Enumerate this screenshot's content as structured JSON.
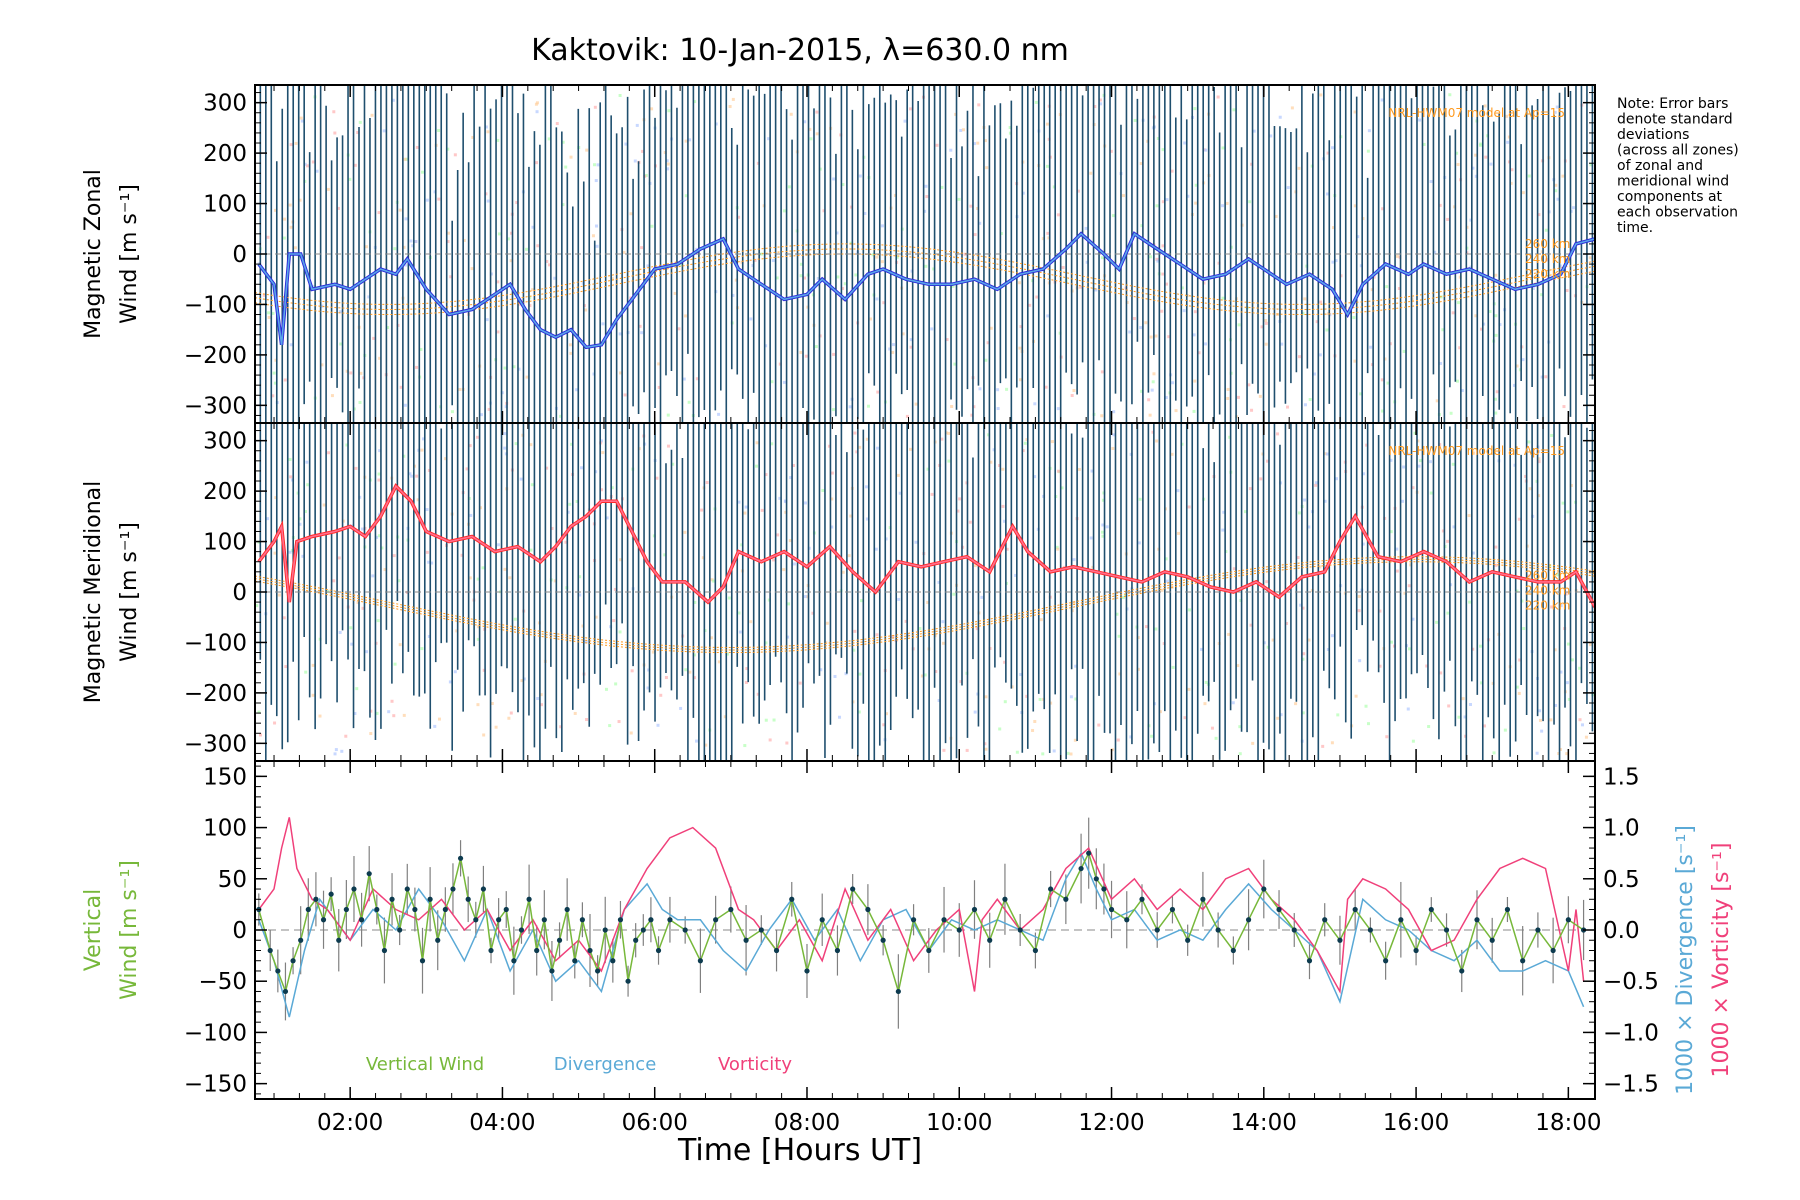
{
  "title": "Kaktovik: 10-Jan-2015, λ=630.0 nm",
  "xlabel": "Time [Hours UT]",
  "note_lines": [
    "Note: Error bars",
    "denote standard",
    "deviations",
    "(across all zones)",
    "of zonal and",
    "meridional wind",
    "components at",
    "each observation",
    "time."
  ],
  "colors": {
    "zonal": "#2b2bd9",
    "zonal_light": "#5aa6e8",
    "meridional": "#ff2a2a",
    "meridional_light": "#ff7090",
    "errorbar": "#1f4f6e",
    "model": "#ff9a1f",
    "vertical": "#77b83a",
    "divergence": "#5aa9d6",
    "vorticity": "#f0407a",
    "vert_err": "#808080",
    "point": "#0d3b4f"
  },
  "chart_data": [
    {
      "type": "line",
      "panel": "zonal",
      "ylabel_line1": "Magnetic Zonal",
      "ylabel_line2": "Wind [m s⁻¹]",
      "xlim": [
        0.75,
        18.35
      ],
      "ylim": [
        -335,
        335
      ],
      "yticks": [
        -300,
        -200,
        -100,
        0,
        100,
        200,
        300
      ],
      "model_label": "NRL-HWM07 model at Ap=15",
      "alt_labels": [
        "260 km",
        "240 km",
        "220 km"
      ],
      "series": [
        {
          "x": [
            0.8,
            1.0,
            1.1,
            1.2,
            1.35,
            1.5,
            1.8,
            2.0,
            2.2,
            2.4,
            2.6,
            2.75,
            3.0,
            3.3,
            3.6,
            3.9,
            4.1,
            4.3,
            4.5,
            4.7,
            4.9,
            5.1,
            5.3,
            5.5,
            5.8,
            6.0,
            6.3,
            6.6,
            6.9,
            7.1,
            7.4,
            7.7,
            8.0,
            8.2,
            8.5,
            8.8,
            9.0,
            9.3,
            9.6,
            9.9,
            10.2,
            10.5,
            10.8,
            11.1,
            11.4,
            11.6,
            11.9,
            12.1,
            12.3,
            12.6,
            12.9,
            13.2,
            13.5,
            13.8,
            14.0,
            14.3,
            14.6,
            14.9,
            15.1,
            15.3,
            15.6,
            15.9,
            16.1,
            16.4,
            16.7,
            17.0,
            17.3,
            17.6,
            17.9,
            18.1,
            18.35
          ],
          "y": [
            -20,
            -60,
            -180,
            0,
            0,
            -70,
            -60,
            -70,
            -50,
            -30,
            -40,
            -10,
            -70,
            -120,
            -110,
            -80,
            -60,
            -110,
            -150,
            -165,
            -150,
            -185,
            -180,
            -130,
            -70,
            -30,
            -20,
            10,
            30,
            -30,
            -60,
            -90,
            -80,
            -50,
            -90,
            -40,
            -30,
            -50,
            -60,
            -60,
            -50,
            -70,
            -40,
            -30,
            10,
            40,
            0,
            -30,
            40,
            10,
            -20,
            -50,
            -40,
            -10,
            -30,
            -60,
            -40,
            -70,
            -120,
            -60,
            -20,
            -40,
            -20,
            -40,
            -30,
            -50,
            -70,
            -60,
            -40,
            20,
            30
          ]
        }
      ]
    },
    {
      "type": "line",
      "panel": "meridional",
      "ylabel_line1": "Magnetic Meridional",
      "ylabel_line2": "Wind [m s⁻¹]",
      "xlim": [
        0.75,
        18.35
      ],
      "ylim": [
        -335,
        335
      ],
      "yticks": [
        -300,
        -200,
        -100,
        0,
        100,
        200,
        300
      ],
      "model_label": "NRL-HWM07 model at Ap=15",
      "alt_labels": [
        "260 km",
        "240 km",
        "220 km"
      ],
      "series": [
        {
          "x": [
            0.8,
            1.0,
            1.1,
            1.2,
            1.3,
            1.5,
            1.8,
            2.0,
            2.2,
            2.4,
            2.6,
            2.8,
            3.0,
            3.3,
            3.6,
            3.9,
            4.2,
            4.5,
            4.7,
            4.9,
            5.1,
            5.3,
            5.5,
            5.7,
            5.9,
            6.1,
            6.4,
            6.7,
            6.9,
            7.1,
            7.4,
            7.7,
            8.0,
            8.3,
            8.6,
            8.9,
            9.2,
            9.5,
            9.8,
            10.1,
            10.4,
            10.7,
            10.9,
            11.2,
            11.5,
            11.8,
            12.1,
            12.4,
            12.7,
            13.0,
            13.3,
            13.6,
            13.9,
            14.2,
            14.5,
            14.8,
            15.0,
            15.2,
            15.5,
            15.8,
            16.1,
            16.4,
            16.7,
            17.0,
            17.3,
            17.6,
            17.9,
            18.1,
            18.35
          ],
          "y": [
            60,
            100,
            130,
            -20,
            100,
            110,
            120,
            130,
            110,
            150,
            210,
            180,
            120,
            100,
            110,
            80,
            90,
            60,
            90,
            130,
            150,
            180,
            180,
            120,
            60,
            20,
            20,
            -20,
            10,
            80,
            60,
            80,
            50,
            90,
            40,
            0,
            60,
            50,
            60,
            70,
            40,
            130,
            80,
            40,
            50,
            40,
            30,
            20,
            40,
            30,
            10,
            0,
            20,
            -10,
            30,
            40,
            100,
            150,
            70,
            60,
            80,
            60,
            20,
            40,
            30,
            20,
            20,
            40,
            -30
          ]
        }
      ]
    },
    {
      "type": "line",
      "panel": "vertical",
      "ylabel_line1": "Vertical",
      "ylabel_line2": "Wind [m s⁻¹]",
      "ylabel_right1": "1000 × Divergence [s⁻¹]",
      "ylabel_right2": "1000 × Vorticity [s⁻¹]",
      "xlim": [
        0.75,
        18.35
      ],
      "ylim": [
        -165,
        165
      ],
      "yticks": [
        -150,
        -100,
        -50,
        0,
        50,
        100,
        150
      ],
      "y2lim": [
        -1.65,
        1.65
      ],
      "y2ticks": [
        -1.5,
        -1.0,
        -0.5,
        0.0,
        0.5,
        1.0,
        1.5
      ],
      "y2tick_labels": [
        "−1.5",
        "−1.0",
        "−0.5",
        "0.0",
        "0.5",
        "1.0",
        "1.5"
      ],
      "legend": [
        "Vertical Wind",
        "Divergence",
        "Vorticity"
      ],
      "series": [
        {
          "name": "Vertical Wind",
          "x": [
            0.8,
            0.95,
            1.05,
            1.15,
            1.25,
            1.35,
            1.45,
            1.55,
            1.65,
            1.75,
            1.85,
            1.95,
            2.05,
            2.15,
            2.25,
            2.35,
            2.45,
            2.55,
            2.65,
            2.75,
            2.85,
            2.95,
            3.05,
            3.15,
            3.25,
            3.35,
            3.45,
            3.55,
            3.65,
            3.75,
            3.85,
            3.95,
            4.05,
            4.15,
            4.25,
            4.35,
            4.45,
            4.55,
            4.65,
            4.75,
            4.85,
            4.95,
            5.05,
            5.15,
            5.25,
            5.35,
            5.45,
            5.55,
            5.65,
            5.75,
            5.85,
            5.95,
            6.05,
            6.2,
            6.4,
            6.6,
            6.8,
            7.0,
            7.2,
            7.4,
            7.6,
            7.8,
            8.0,
            8.2,
            8.4,
            8.6,
            8.8,
            9.0,
            9.2,
            9.4,
            9.6,
            9.8,
            10.0,
            10.2,
            10.4,
            10.6,
            10.8,
            11.0,
            11.2,
            11.4,
            11.6,
            11.7,
            11.8,
            11.9,
            12.0,
            12.2,
            12.4,
            12.6,
            12.8,
            13.0,
            13.2,
            13.4,
            13.6,
            13.8,
            14.0,
            14.2,
            14.4,
            14.6,
            14.8,
            15.0,
            15.2,
            15.4,
            15.6,
            15.8,
            16.0,
            16.2,
            16.4,
            16.6,
            16.8,
            17.0,
            17.2,
            17.4,
            17.6,
            17.8,
            18.0,
            18.2
          ],
          "y": [
            20,
            -20,
            -40,
            -60,
            -30,
            -10,
            20,
            30,
            10,
            35,
            -10,
            20,
            40,
            10,
            55,
            20,
            -20,
            30,
            0,
            40,
            20,
            -30,
            30,
            -10,
            20,
            40,
            70,
            30,
            10,
            40,
            -20,
            10,
            20,
            -30,
            0,
            30,
            -20,
            10,
            -40,
            -10,
            20,
            -30,
            10,
            -20,
            -40,
            0,
            -30,
            10,
            -50,
            -10,
            0,
            10,
            -20,
            10,
            0,
            -30,
            10,
            20,
            -10,
            0,
            -20,
            30,
            -40,
            10,
            -20,
            40,
            20,
            -10,
            -60,
            10,
            -20,
            10,
            0,
            20,
            -10,
            30,
            0,
            -20,
            40,
            30,
            60,
            75,
            50,
            40,
            20,
            10,
            30,
            0,
            20,
            -10,
            30,
            0,
            -20,
            10,
            40,
            20,
            0,
            -30,
            10,
            -10,
            20,
            0,
            -30,
            10,
            -20,
            20,
            0,
            -40,
            10,
            -10,
            20,
            -30,
            0,
            -20,
            10,
            0
          ]
        },
        {
          "name": "Divergence",
          "x": [
            0.8,
            1.0,
            1.2,
            1.4,
            1.6,
            1.8,
            2.0,
            2.3,
            2.6,
            2.9,
            3.2,
            3.5,
            3.8,
            4.1,
            4.4,
            4.7,
            5.0,
            5.3,
            5.6,
            5.9,
            6.1,
            6.3,
            6.6,
            6.9,
            7.2,
            7.5,
            7.8,
            8.1,
            8.4,
            8.7,
            9.0,
            9.3,
            9.6,
            9.9,
            10.2,
            10.5,
            10.8,
            11.1,
            11.4,
            11.6,
            11.8,
            12.0,
            12.3,
            12.6,
            12.9,
            13.2,
            13.5,
            13.8,
            14.1,
            14.4,
            14.7,
            15.0,
            15.3,
            15.6,
            15.9,
            16.2,
            16.5,
            16.8,
            17.1,
            17.4,
            17.7,
            18.0,
            18.2
          ],
          "y": [
            0.1,
            -0.3,
            -0.85,
            -0.2,
            0.3,
            0.1,
            -0.1,
            0.2,
            0.0,
            0.4,
            0.1,
            -0.3,
            0.2,
            -0.4,
            0.0,
            -0.5,
            -0.3,
            -0.6,
            0.2,
            0.45,
            0.2,
            0.1,
            0.1,
            -0.2,
            -0.4,
            0.0,
            0.3,
            -0.1,
            0.2,
            -0.3,
            0.1,
            0.2,
            -0.2,
            0.1,
            0.0,
            0.1,
            0.0,
            -0.1,
            0.5,
            0.75,
            0.4,
            0.1,
            0.2,
            -0.1,
            0.0,
            -0.1,
            0.2,
            0.45,
            0.2,
            0.0,
            -0.2,
            -0.7,
            0.3,
            0.1,
            0.0,
            -0.2,
            -0.3,
            -0.1,
            -0.4,
            -0.4,
            -0.3,
            -0.4,
            -0.75
          ]
        },
        {
          "name": "Vorticity",
          "x": [
            0.8,
            1.0,
            1.1,
            1.2,
            1.3,
            1.5,
            1.7,
            2.0,
            2.3,
            2.6,
            2.9,
            3.2,
            3.5,
            3.8,
            4.1,
            4.4,
            4.7,
            5.0,
            5.3,
            5.6,
            5.9,
            6.2,
            6.5,
            6.8,
            7.1,
            7.3,
            7.6,
            7.9,
            8.2,
            8.5,
            8.8,
            9.1,
            9.4,
            9.7,
            10.0,
            10.2,
            10.3,
            10.5,
            10.8,
            11.1,
            11.4,
            11.7,
            12.0,
            12.3,
            12.6,
            12.9,
            13.2,
            13.5,
            13.8,
            14.1,
            14.4,
            14.7,
            15.0,
            15.1,
            15.3,
            15.6,
            15.9,
            16.2,
            16.5,
            16.8,
            17.1,
            17.4,
            17.7,
            18.0,
            18.1,
            18.2
          ],
          "y": [
            0.2,
            0.4,
            0.8,
            1.1,
            0.6,
            0.3,
            0.2,
            -0.1,
            0.4,
            0.2,
            0.1,
            0.3,
            0.0,
            0.2,
            -0.2,
            0.1,
            -0.3,
            -0.1,
            -0.4,
            0.2,
            0.6,
            0.9,
            1.0,
            0.8,
            0.2,
            0.1,
            -0.2,
            0.1,
            -0.3,
            0.4,
            -0.1,
            0.2,
            -0.3,
            0.0,
            0.2,
            -0.6,
            0.1,
            0.3,
            0.0,
            0.2,
            0.6,
            0.8,
            0.3,
            0.5,
            0.2,
            0.4,
            0.2,
            0.5,
            0.6,
            0.3,
            0.1,
            -0.2,
            -0.6,
            0.3,
            0.5,
            0.4,
            0.2,
            -0.2,
            -0.1,
            0.3,
            0.6,
            0.7,
            0.6,
            -0.4,
            0.2,
            -0.5
          ]
        }
      ]
    }
  ],
  "xticks": [
    2,
    4,
    6,
    8,
    10,
    12,
    14,
    16,
    18
  ],
  "xtick_labels": [
    "02:00",
    "04:00",
    "06:00",
    "08:00",
    "10:00",
    "12:00",
    "14:00",
    "16:00",
    "18:00"
  ]
}
